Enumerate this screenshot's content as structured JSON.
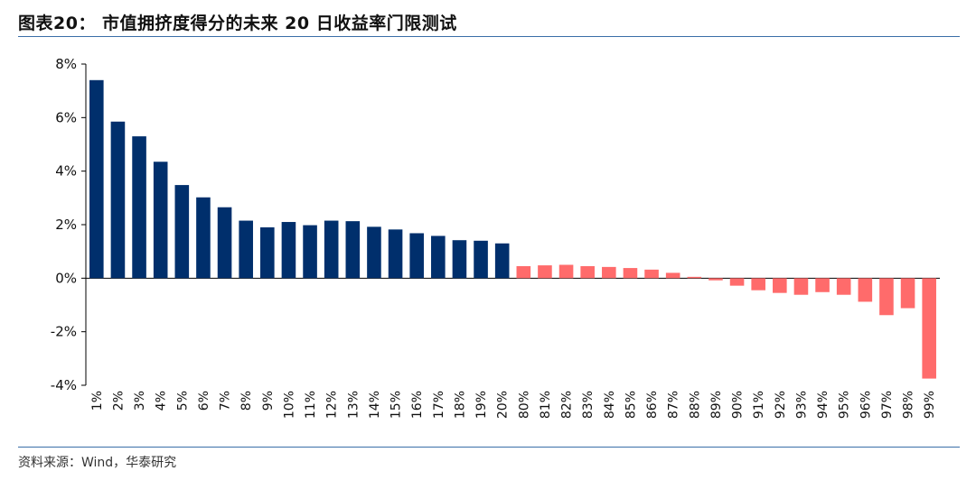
{
  "header": {
    "title": "图表20： 市值拥挤度得分的未来 20 日收益率门限测试"
  },
  "footer": {
    "source": "资料来源：Wind，华泰研究"
  },
  "colors": {
    "positive": "#002f6c",
    "negative": "#ff6b6b",
    "rule": "#3a6ea8",
    "axis": "#000000"
  },
  "chart_data": {
    "type": "bar",
    "title": "",
    "xlabel": "",
    "ylabel": "",
    "ylim": [
      -4,
      8
    ],
    "yticks": [
      8,
      6,
      4,
      2,
      0,
      -2,
      -4
    ],
    "ytick_labels": [
      "8%",
      "6%",
      "4%",
      "2%",
      "0%",
      "-2%",
      "-4%"
    ],
    "grid": false,
    "legend": "none",
    "categories": [
      "1%",
      "2%",
      "3%",
      "4%",
      "5%",
      "6%",
      "7%",
      "8%",
      "9%",
      "10%",
      "11%",
      "12%",
      "13%",
      "14%",
      "15%",
      "16%",
      "17%",
      "18%",
      "19%",
      "20%",
      "80%",
      "81%",
      "82%",
      "83%",
      "84%",
      "85%",
      "86%",
      "87%",
      "88%",
      "89%",
      "90%",
      "91%",
      "92%",
      "93%",
      "94%",
      "95%",
      "96%",
      "97%",
      "98%",
      "99%"
    ],
    "values": [
      7.4,
      5.85,
      5.3,
      4.35,
      3.48,
      3.02,
      2.65,
      2.15,
      1.9,
      2.1,
      1.98,
      2.15,
      2.13,
      1.92,
      1.82,
      1.68,
      1.58,
      1.42,
      1.4,
      1.3,
      0.45,
      0.48,
      0.5,
      0.45,
      0.42,
      0.38,
      0.32,
      0.2,
      0.05,
      -0.08,
      -0.28,
      -0.45,
      -0.55,
      -0.62,
      -0.52,
      -0.62,
      -0.88,
      -1.38,
      -1.12,
      -3.75
    ],
    "series_colors": {
      "top_groups": "positive",
      "bottom_groups": "negative"
    }
  }
}
